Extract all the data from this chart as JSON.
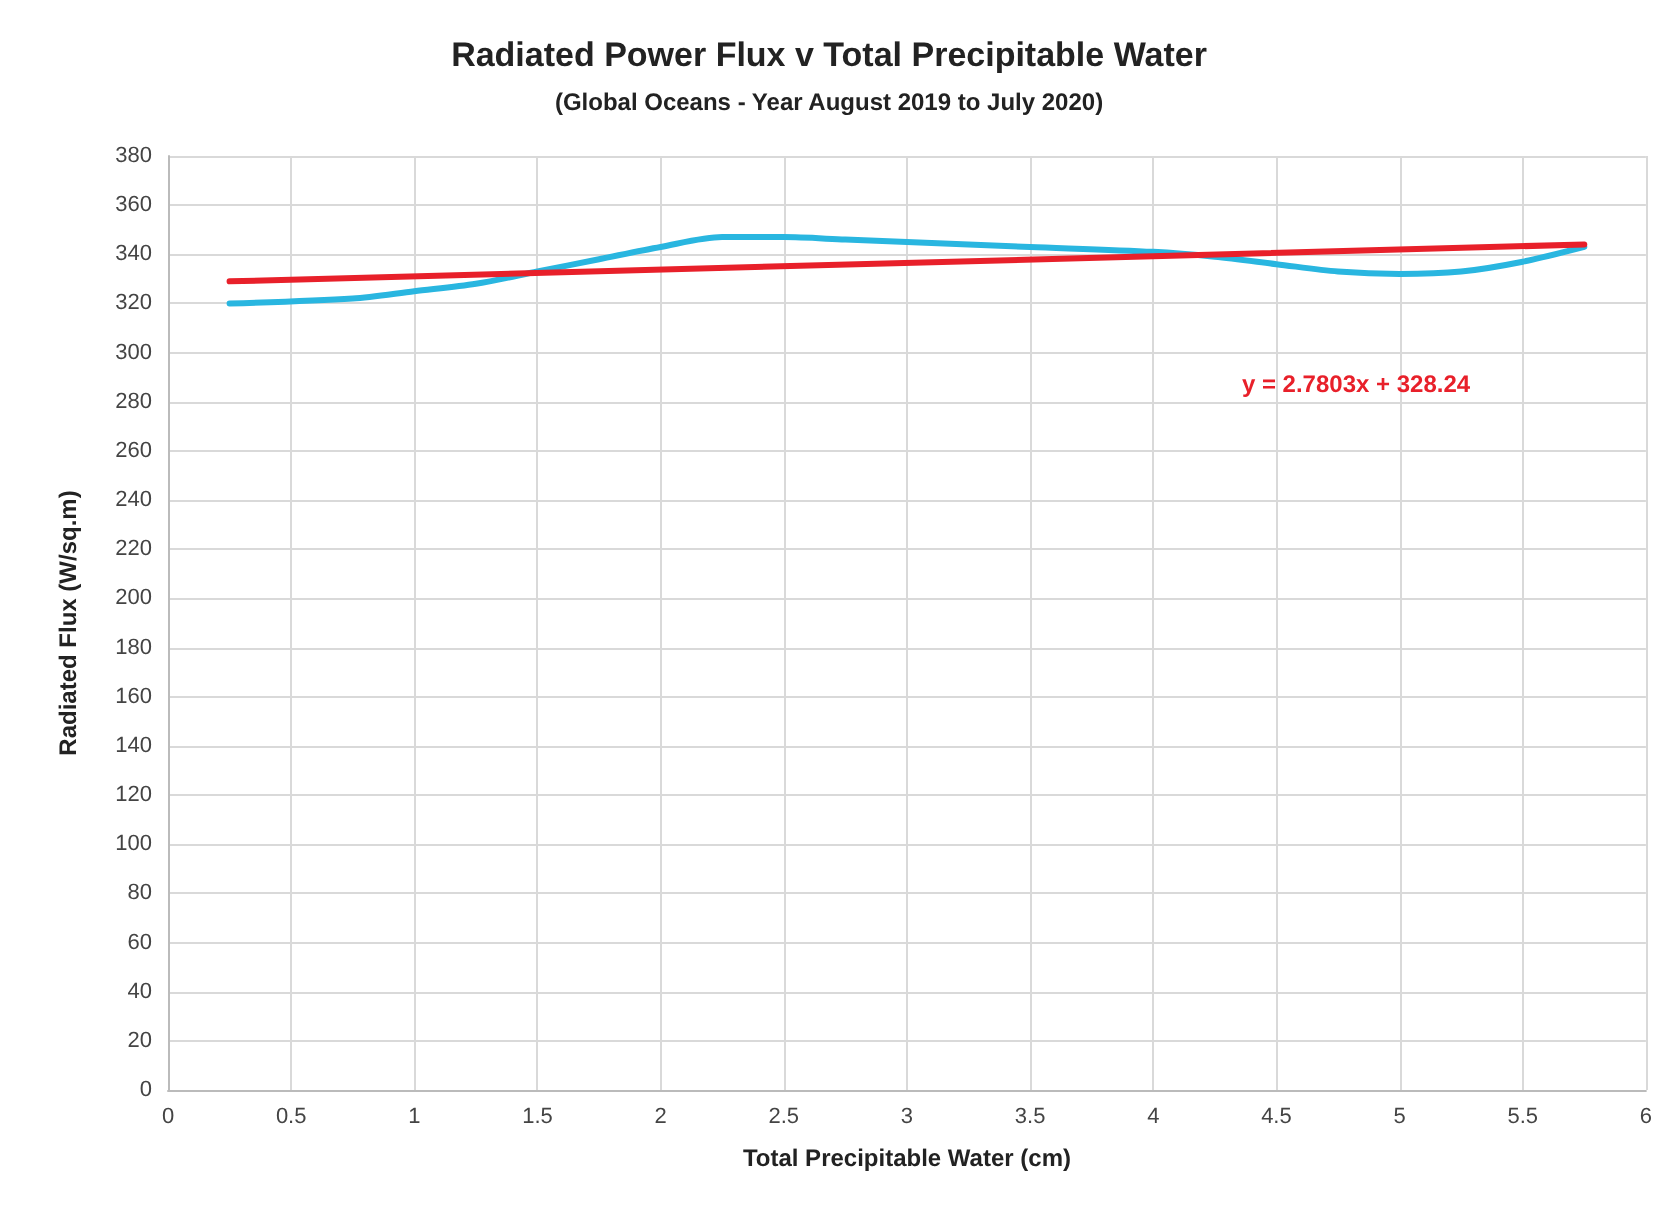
{
  "chart_data": {
    "type": "line",
    "title": "Radiated Power Flux v Total Precipitable Water",
    "subtitle": "(Global Oceans - Year August 2019 to July 2020)",
    "xlabel": "Total Precipitable Water (cm)",
    "ylabel": "Radiated Flux (W/sq.m)",
    "series": [
      {
        "color": "#29b6e0",
        "x": [
          0.25,
          0.75,
          1,
          1.25,
          1.5,
          1.75,
          2,
          2.25,
          2.5,
          2.75,
          3,
          3.5,
          4,
          4.25,
          4.5,
          4.75,
          5,
          5.25,
          5.5,
          5.75
        ],
        "values": [
          320,
          322,
          325,
          328,
          333,
          338,
          343,
          347,
          347,
          346,
          345,
          343,
          341,
          339,
          336,
          333,
          332,
          333,
          337,
          343
        ]
      },
      {
        "type": "line",
        "color": "#e8202a",
        "x": [
          0.25,
          5.75
        ],
        "values": [
          329,
          344
        ]
      }
    ],
    "annotations": [
      "y = 2.7803x + 328.24"
    ],
    "xlim": [
      0,
      6
    ],
    "xticks": [
      0,
      0.5,
      1,
      1.5,
      2,
      2.5,
      3,
      3.5,
      4,
      4.5,
      5,
      5.5,
      6
    ],
    "ylim": [
      0,
      380
    ],
    "yticks": [
      0,
      20,
      40,
      60,
      80,
      100,
      120,
      140,
      160,
      180,
      200,
      220,
      240,
      260,
      280,
      300,
      320,
      340,
      360,
      380
    ],
    "grid": true,
    "marker": "none",
    "line_style": "solid"
  }
}
